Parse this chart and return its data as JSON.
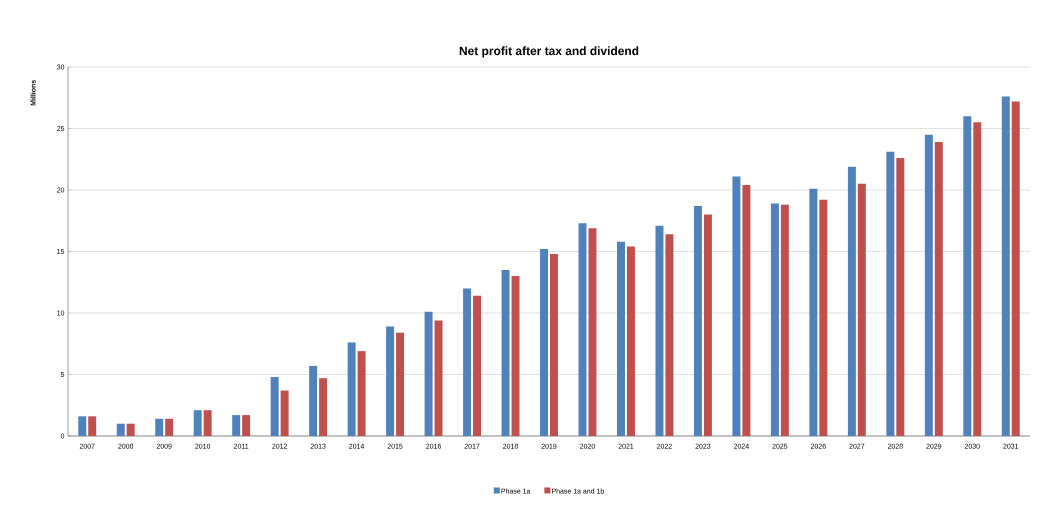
{
  "chart_data": {
    "type": "bar",
    "title": "Net profit after tax and dividend",
    "ylabel": "Millions",
    "categories": [
      "2007",
      "2008",
      "2009",
      "2010",
      "2011",
      "2012",
      "2013",
      "2014",
      "2015",
      "2016",
      "2017",
      "2018",
      "2019",
      "2020",
      "2021",
      "2022",
      "2023",
      "2024",
      "2025",
      "2026",
      "2027",
      "2028",
      "2029",
      "2030",
      "2031"
    ],
    "series": [
      {
        "name": "Phase 1a",
        "color": "#4f81bd",
        "values": [
          1.6,
          1.0,
          1.4,
          2.1,
          1.7,
          4.8,
          5.7,
          7.6,
          8.9,
          10.1,
          12.0,
          13.5,
          15.2,
          17.3,
          15.8,
          17.1,
          18.7,
          21.1,
          18.9,
          20.1,
          21.9,
          23.1,
          24.5,
          26.0,
          27.6
        ]
      },
      {
        "name": "Phase 1a and 1b",
        "color": "#c0504d",
        "values": [
          1.6,
          1.0,
          1.4,
          2.1,
          1.7,
          3.7,
          4.7,
          6.9,
          8.4,
          9.4,
          11.4,
          13.0,
          14.8,
          16.9,
          15.4,
          16.4,
          18.0,
          20.4,
          18.8,
          19.2,
          20.5,
          22.6,
          23.9,
          25.5,
          27.2
        ]
      }
    ],
    "ylim": [
      0,
      30
    ],
    "yticks": [
      0,
      5,
      10,
      15,
      20,
      25,
      30
    ],
    "grid": "y",
    "legend": "bottom"
  }
}
